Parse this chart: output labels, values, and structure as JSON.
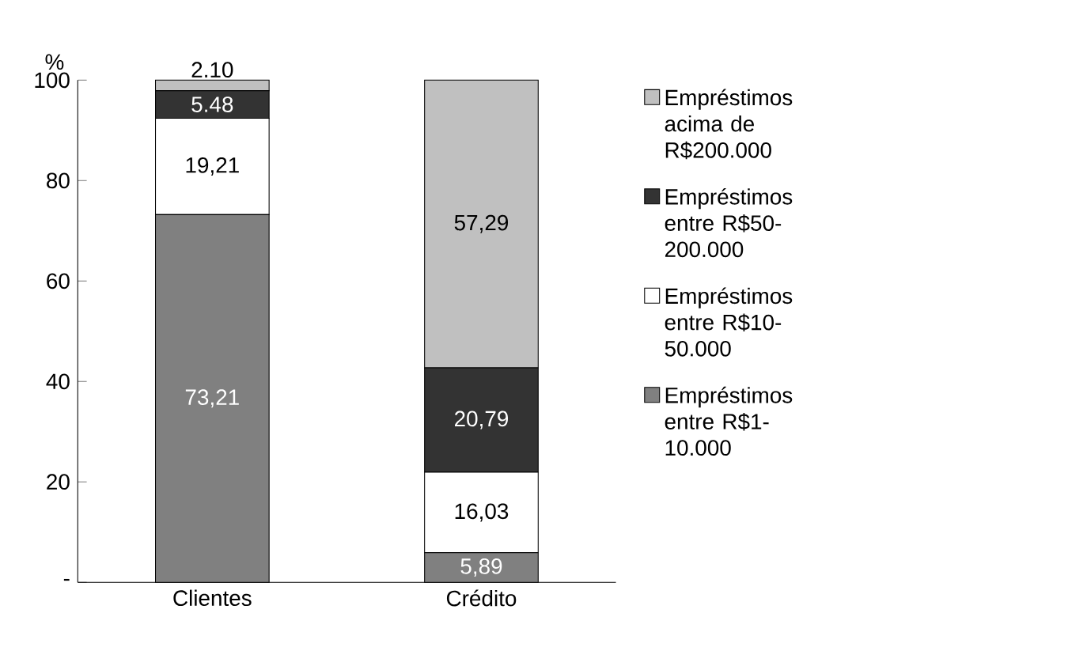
{
  "chart_data": {
    "type": "bar",
    "stacked": true,
    "ylabel": "%",
    "categories": [
      "Clientes",
      "Crédito"
    ],
    "series": [
      {
        "name": "Empréstimos entre R$1-10.000",
        "color": "#808080",
        "values": [
          73.21,
          5.89
        ],
        "value_labels": [
          "73,21",
          "5,89"
        ]
      },
      {
        "name": "Empréstimos entre R$10-50.000",
        "color": "#ffffff",
        "values": [
          19.21,
          16.03
        ],
        "value_labels": [
          "19,21",
          "16,03"
        ]
      },
      {
        "name": "Empréstimos entre R$50-200.000",
        "color": "#333333",
        "values": [
          5.48,
          20.79
        ],
        "value_labels": [
          "5.48",
          "20,79"
        ]
      },
      {
        "name": "Empréstimos acima de R$200.000",
        "color": "#c0c0c0",
        "values": [
          2.1,
          57.29
        ],
        "value_labels": [
          "2.10",
          "57,29"
        ]
      }
    ],
    "ylim": [
      0,
      100
    ],
    "yticks": [
      {
        "value": 0,
        "label": "-"
      },
      20,
      40,
      60,
      80,
      100
    ],
    "grid": false,
    "legend": "right"
  }
}
